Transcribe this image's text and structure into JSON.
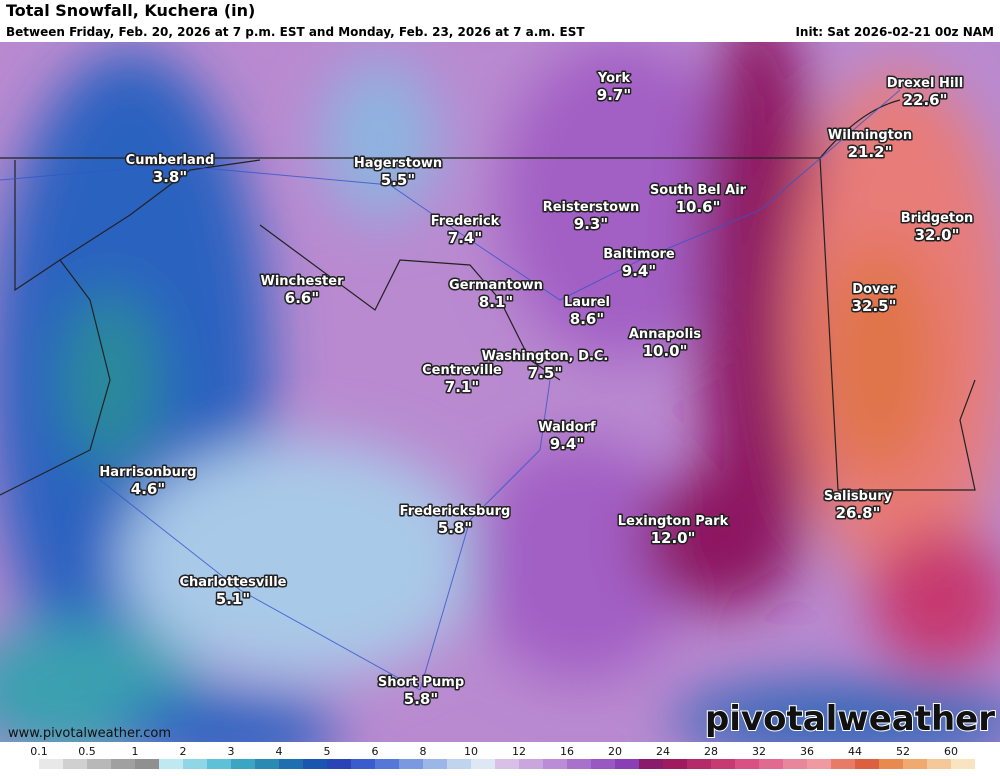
{
  "header": {
    "title": "Total Snowfall, Kuchera (in)",
    "subtitle": "Between Friday, Feb. 20, 2026 at 7 p.m. EST and Monday, Feb. 23, 2026 at 7 a.m. EST",
    "init": "Init: Sat 2026-02-21 00z NAM"
  },
  "cities": [
    {
      "name": "Cumberland",
      "snowfall": "3.8\""
    },
    {
      "name": "Hagerstown",
      "snowfall": "5.5\""
    },
    {
      "name": "York",
      "snowfall": "9.7\""
    },
    {
      "name": "Drexel Hill",
      "snowfall": "22.6\""
    },
    {
      "name": "Wilmington",
      "snowfall": "21.2\""
    },
    {
      "name": "South Bel Air",
      "snowfall": "10.6\""
    },
    {
      "name": "Reisterstown",
      "snowfall": "9.3\""
    },
    {
      "name": "Frederick",
      "snowfall": "7.4\""
    },
    {
      "name": "Bridgeton",
      "snowfall": "32.0\""
    },
    {
      "name": "Baltimore",
      "snowfall": "9.4\""
    },
    {
      "name": "Winchester",
      "snowfall": "6.6\""
    },
    {
      "name": "Germantown",
      "snowfall": "8.1\""
    },
    {
      "name": "Dover",
      "snowfall": "32.5\""
    },
    {
      "name": "Laurel",
      "snowfall": "8.6\""
    },
    {
      "name": "Annapolis",
      "snowfall": "10.0\""
    },
    {
      "name": "Washington, D.C.",
      "snowfall": "7.5\""
    },
    {
      "name": "Centreville",
      "snowfall": "7.1\""
    },
    {
      "name": "Waldorf",
      "snowfall": "9.4\""
    },
    {
      "name": "Harrisonburg",
      "snowfall": "4.6\""
    },
    {
      "name": "Salisbury",
      "snowfall": "26.8\""
    },
    {
      "name": "Fredericksburg",
      "snowfall": "5.8\""
    },
    {
      "name": "Lexington Park",
      "snowfall": "12.0\""
    },
    {
      "name": "Charlottesville",
      "snowfall": "5.1\""
    },
    {
      "name": "Short Pump",
      "snowfall": "5.8\""
    }
  ],
  "watermark": {
    "url": "www.pivotalweather.com",
    "logo": "pivotalweather"
  },
  "legend": {
    "ticks": [
      0.1,
      0.5,
      1,
      2,
      3,
      4,
      5,
      6,
      8,
      10,
      12,
      16,
      20,
      24,
      28,
      32,
      36,
      44,
      52,
      60
    ]
  }
}
